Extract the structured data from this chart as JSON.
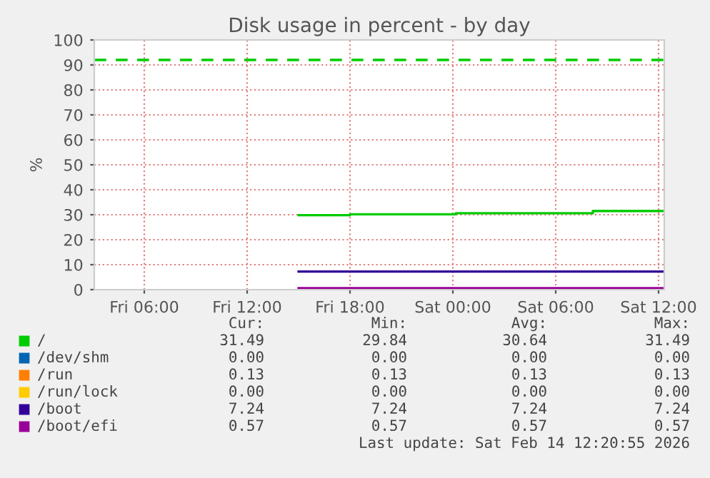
{
  "chart_data": {
    "type": "step",
    "title": "Disk usage in percent - by day",
    "ylabel": "%",
    "xlim": [
      "2026-02-13T03:05",
      "2026-02-14T12:20"
    ],
    "xticks": [
      {
        "value": "2026-02-13T06:00",
        "label": "Fri 06:00"
      },
      {
        "value": "2026-02-13T12:00",
        "label": "Fri 12:00"
      },
      {
        "value": "2026-02-13T18:00",
        "label": "Fri 18:00"
      },
      {
        "value": "2026-02-14T00:00",
        "label": "Sat 00:00"
      },
      {
        "value": "2026-02-14T06:00",
        "label": "Sat 06:00"
      },
      {
        "value": "2026-02-14T12:00",
        "label": "Sat 12:00"
      }
    ],
    "ylim": [
      0,
      100
    ],
    "yticks": [
      0,
      10,
      20,
      30,
      40,
      50,
      60,
      70,
      80,
      90,
      100
    ],
    "grid": true,
    "legend": "bottom",
    "line_style": "solid",
    "marker": "none",
    "series": [
      {
        "name": "/",
        "color": "#00cc00",
        "x": [
          "2026-02-13T15:00",
          "2026-02-13T18:00",
          "2026-02-14T00:10",
          "2026-02-14T08:10",
          "2026-02-14T12:20"
        ],
        "values": [
          29.84,
          30.2,
          30.6,
          31.49,
          31.49
        ]
      },
      {
        "name": "/dev/shm",
        "color": "#0066b3"
      },
      {
        "name": "/run",
        "color": "#ff8000"
      },
      {
        "name": "/run/lock",
        "color": "#ffcc00"
      },
      {
        "name": "/boot",
        "color": "#330099",
        "x": [
          "2026-02-13T15:00",
          "2026-02-14T12:20"
        ],
        "values": [
          7.24,
          7.24
        ]
      },
      {
        "name": "/boot/efi",
        "color": "#990099",
        "x": [
          "2026-02-13T15:00",
          "2026-02-14T12:20"
        ],
        "values": [
          0.57,
          0.57
        ]
      }
    ],
    "ref_lines": [
      {
        "axis": "y",
        "value": 92,
        "label": null,
        "color": "#00cc00",
        "line_style": "dashed"
      }
    ],
    "annotations": [
      "Cur:",
      "Min:",
      "Avg:",
      "Max:",
      "31.49",
      "29.84",
      "30.64",
      "31.49",
      "0.00",
      "0.00",
      "0.00",
      "0.00",
      "0.13",
      "0.13",
      "0.13",
      "0.13",
      "0.00",
      "0.00",
      "0.00",
      "0.00",
      "7.24",
      "7.24",
      "7.24",
      "7.24",
      "0.57",
      "0.57",
      "0.57",
      "0.57",
      "Last update: Sat Feb 14 12:20:55 2026"
    ]
  }
}
